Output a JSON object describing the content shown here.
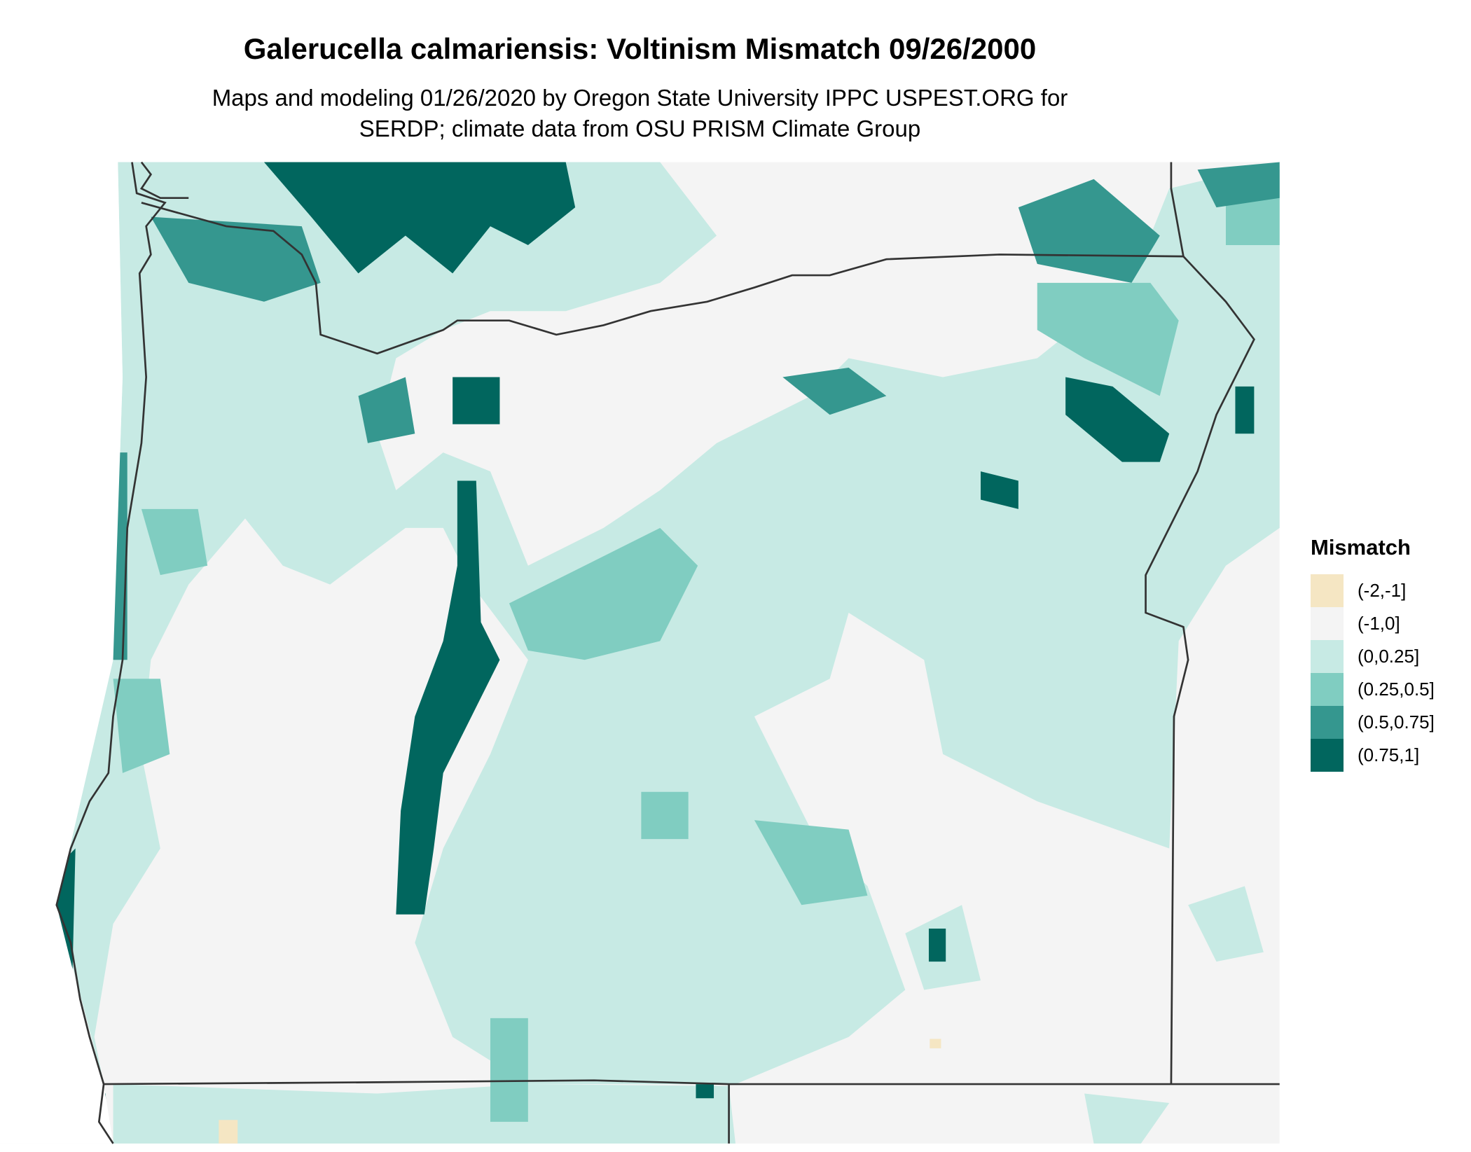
{
  "title": "Galerucella calmariensis: Voltinism Mismatch 09/26/2000",
  "subtitle_line1": "Maps and modeling 01/26/2020 by Oregon State University IPPC USPEST.ORG for",
  "subtitle_line2": "SERDP; climate data from OSU PRISM Climate Group",
  "legend": {
    "title": "Mismatch",
    "items": [
      {
        "label": "(-2,-1]",
        "color": "#f5e6c3"
      },
      {
        "label": "(-1,0]",
        "color": "#f4f4f4"
      },
      {
        "label": "(0,0.25]",
        "color": "#c7eae4"
      },
      {
        "label": "(0.25,0.5]",
        "color": "#80cdc1"
      },
      {
        "label": "(0.5,0.75]",
        "color": "#35978f"
      },
      {
        "label": "(0.75,1]",
        "color": "#01665e"
      }
    ]
  },
  "chart_data": {
    "type": "heatmap",
    "title": "Galerucella calmariensis: Voltinism Mismatch 09/26/2000",
    "legend_title": "Mismatch",
    "legend_placement": "right",
    "categories": [
      "(-2,-1]",
      "(-1,0]",
      "(0,0.25]",
      "(0.25,0.5]",
      "(0.5,0.75]",
      "(0.75,1]"
    ],
    "colors": [
      "#f5e6c3",
      "#f4f4f4",
      "#c7eae4",
      "#80cdc1",
      "#35978f",
      "#01665e"
    ],
    "border_color": "#333333"
  }
}
